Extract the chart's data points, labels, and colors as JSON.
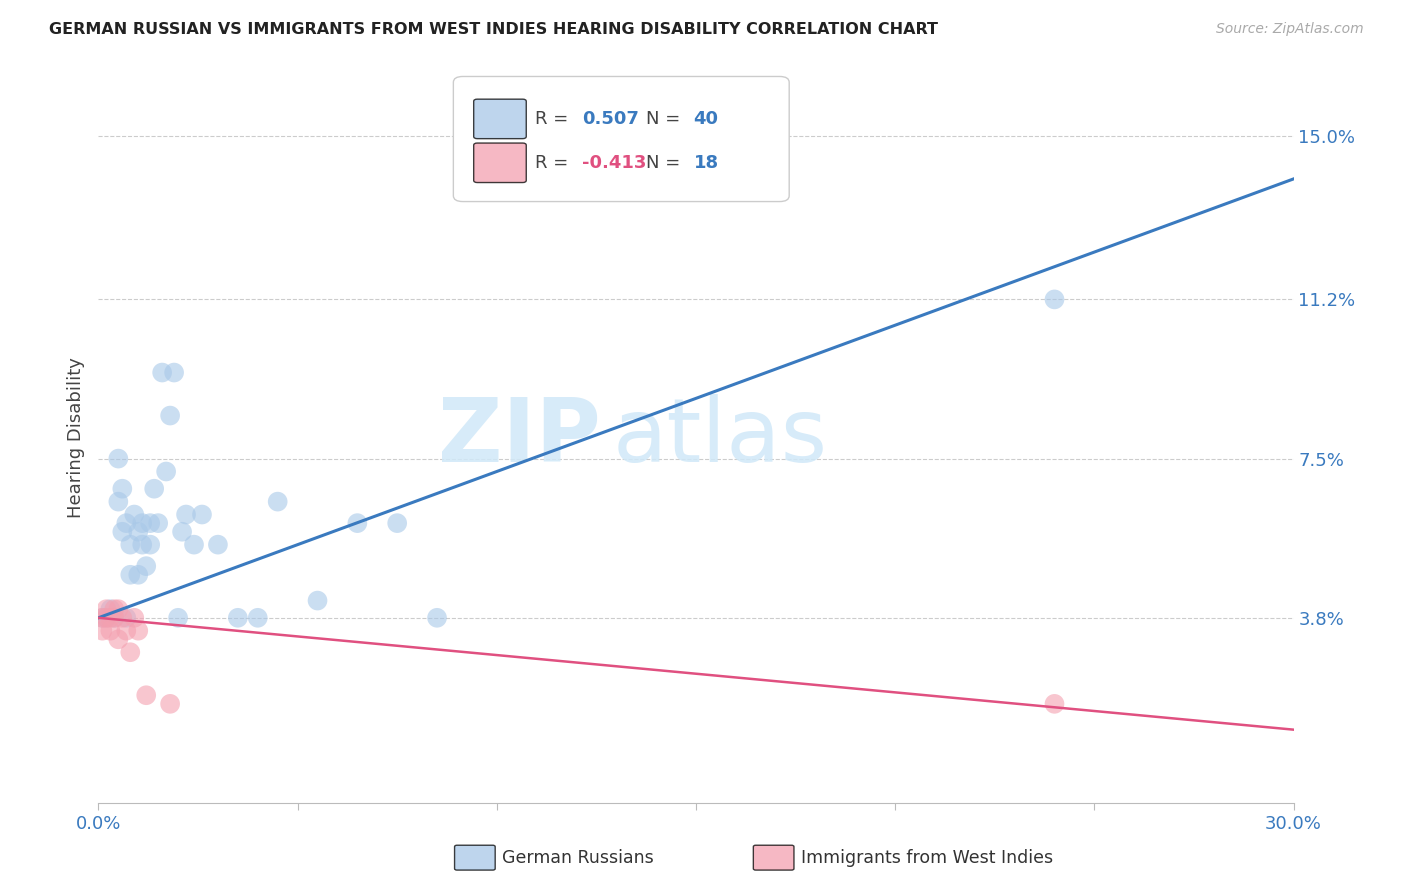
{
  "title": "GERMAN RUSSIAN VS IMMIGRANTS FROM WEST INDIES HEARING DISABILITY CORRELATION CHART",
  "source": "Source: ZipAtlas.com",
  "ylabel": "Hearing Disability",
  "ytick_labels": [
    "15.0%",
    "11.2%",
    "7.5%",
    "3.8%"
  ],
  "ytick_values": [
    0.15,
    0.112,
    0.075,
    0.038
  ],
  "xmin": 0.0,
  "xmax": 0.3,
  "ymin": -0.005,
  "ymax": 0.165,
  "blue_R": 0.507,
  "blue_N": 40,
  "pink_R": -0.413,
  "pink_N": 18,
  "blue_color": "#a8c8e8",
  "pink_color": "#f4a0b0",
  "blue_line_color": "#3a7abf",
  "pink_line_color": "#e05080",
  "watermark_color": "#d0e8f8",
  "legend_label_blue": "German Russians",
  "legend_label_pink": "Immigrants from West Indies",
  "blue_x": [
    0.001,
    0.002,
    0.003,
    0.004,
    0.005,
    0.005,
    0.006,
    0.006,
    0.007,
    0.007,
    0.008,
    0.008,
    0.009,
    0.01,
    0.01,
    0.011,
    0.011,
    0.012,
    0.013,
    0.013,
    0.014,
    0.015,
    0.016,
    0.017,
    0.018,
    0.019,
    0.02,
    0.021,
    0.022,
    0.024,
    0.026,
    0.03,
    0.035,
    0.04,
    0.045,
    0.055,
    0.065,
    0.075,
    0.085,
    0.24
  ],
  "blue_y": [
    0.038,
    0.038,
    0.04,
    0.038,
    0.075,
    0.065,
    0.068,
    0.058,
    0.038,
    0.06,
    0.055,
    0.048,
    0.062,
    0.058,
    0.048,
    0.055,
    0.06,
    0.05,
    0.06,
    0.055,
    0.068,
    0.06,
    0.095,
    0.072,
    0.085,
    0.095,
    0.038,
    0.058,
    0.062,
    0.055,
    0.062,
    0.055,
    0.038,
    0.038,
    0.065,
    0.042,
    0.06,
    0.06,
    0.038,
    0.112
  ],
  "pink_x": [
    0.001,
    0.001,
    0.002,
    0.002,
    0.003,
    0.003,
    0.004,
    0.004,
    0.005,
    0.005,
    0.006,
    0.007,
    0.008,
    0.009,
    0.01,
    0.012,
    0.018,
    0.24
  ],
  "pink_y": [
    0.035,
    0.038,
    0.04,
    0.038,
    0.038,
    0.035,
    0.04,
    0.038,
    0.033,
    0.04,
    0.038,
    0.035,
    0.03,
    0.038,
    0.035,
    0.02,
    0.018,
    0.018
  ],
  "blue_line_x": [
    0.0,
    0.3
  ],
  "blue_line_y": [
    0.038,
    0.14
  ],
  "pink_line_x": [
    0.0,
    0.3
  ],
  "pink_line_y": [
    0.038,
    0.012
  ]
}
